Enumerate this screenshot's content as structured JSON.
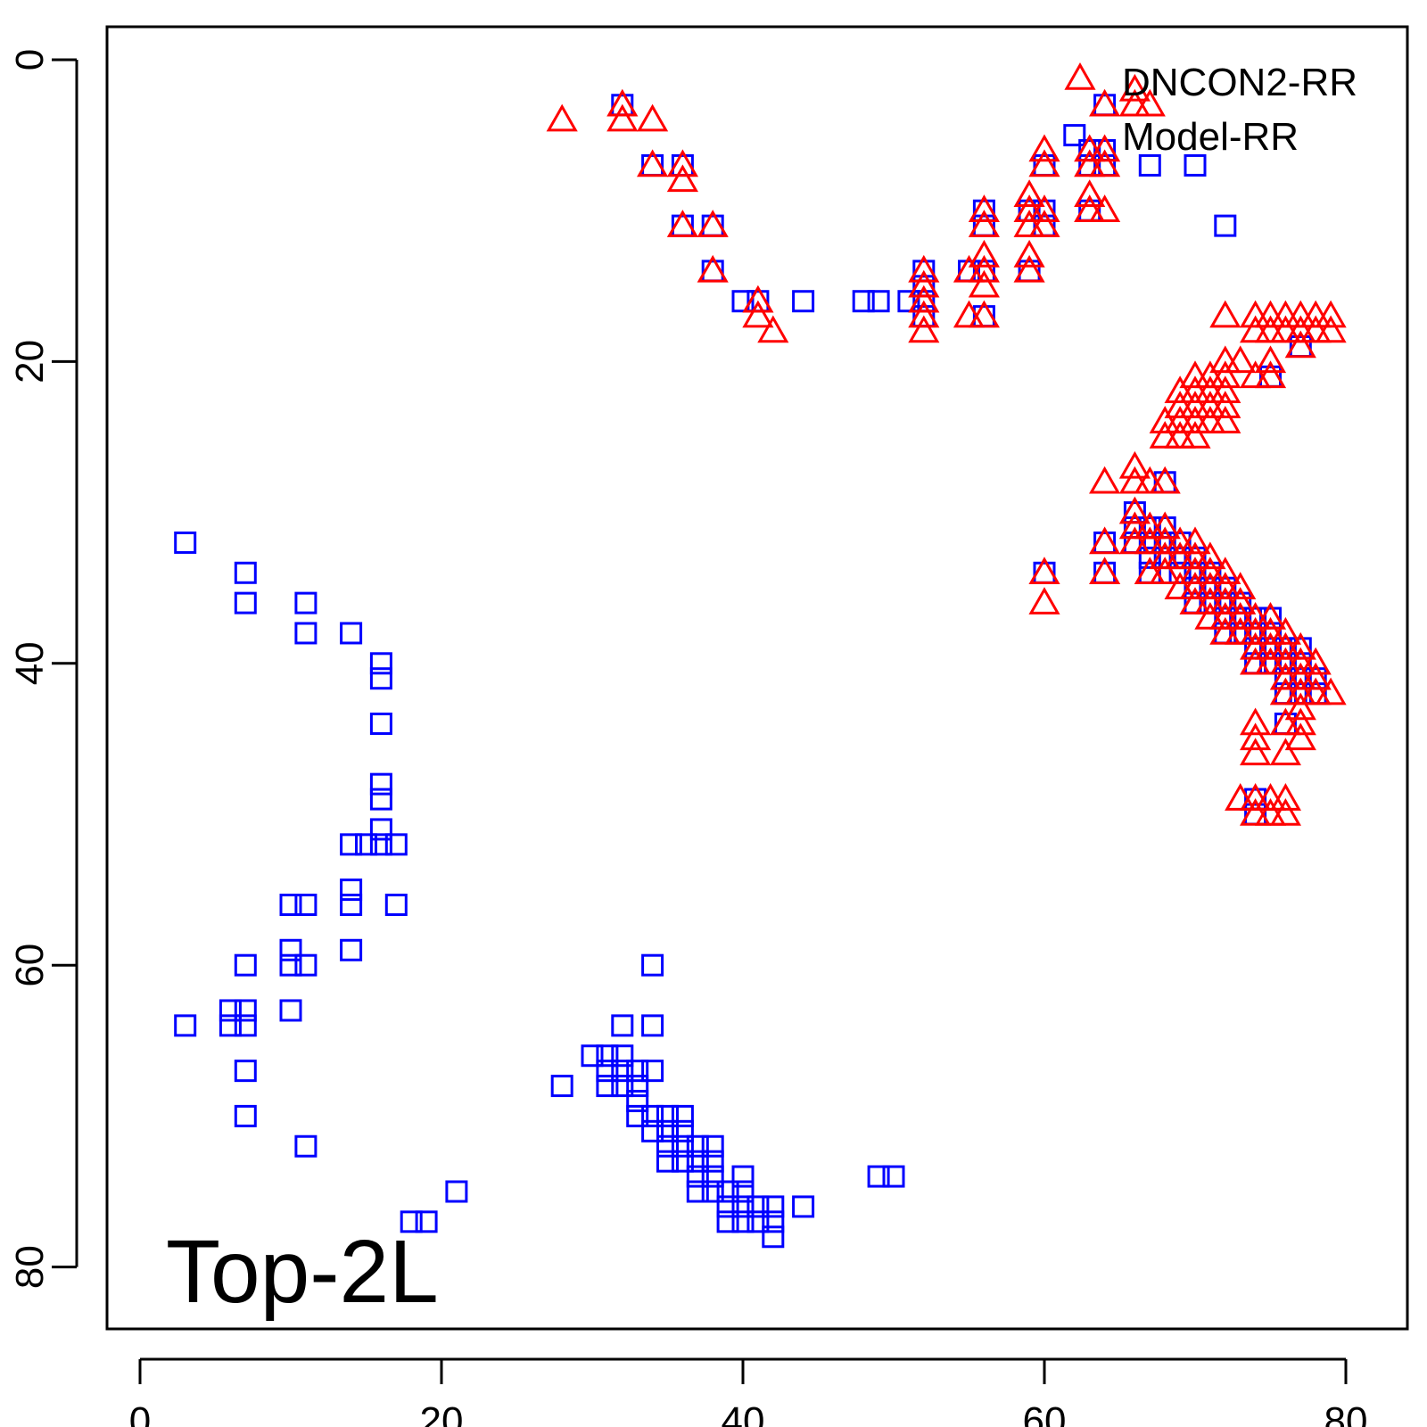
{
  "chart_data": {
    "type": "scatter",
    "xlim": [
      -2,
      84
    ],
    "ylim": [
      84,
      -2
    ],
    "y_reversed": true,
    "x_ticks": [
      0,
      20,
      40,
      60,
      80
    ],
    "y_ticks": [
      0,
      20,
      40,
      60,
      80
    ],
    "grid": false,
    "legend_position": "top-right",
    "annotation": "Top-2L",
    "series": [
      {
        "name": "DNCON2-RR",
        "marker": "triangle",
        "color": "#ff0000",
        "points": [
          [
            28,
            4
          ],
          [
            32,
            3
          ],
          [
            32,
            4
          ],
          [
            34,
            4
          ],
          [
            34,
            7
          ],
          [
            36,
            7
          ],
          [
            36,
            8
          ],
          [
            36,
            11
          ],
          [
            38,
            11
          ],
          [
            38,
            14
          ],
          [
            41,
            16
          ],
          [
            41,
            17
          ],
          [
            42,
            18
          ],
          [
            52,
            14
          ],
          [
            52,
            15
          ],
          [
            52,
            16
          ],
          [
            52,
            17
          ],
          [
            52,
            18
          ],
          [
            55,
            14
          ],
          [
            55,
            17
          ],
          [
            56,
            10
          ],
          [
            56,
            11
          ],
          [
            56,
            13
          ],
          [
            56,
            14
          ],
          [
            56,
            15
          ],
          [
            56,
            17
          ],
          [
            59,
            9
          ],
          [
            59,
            10
          ],
          [
            59,
            11
          ],
          [
            59,
            13
          ],
          [
            59,
            14
          ],
          [
            60,
            6
          ],
          [
            60,
            7
          ],
          [
            60,
            10
          ],
          [
            60,
            11
          ],
          [
            60,
            34
          ],
          [
            60,
            36
          ],
          [
            63,
            6
          ],
          [
            63,
            7
          ],
          [
            63,
            9
          ],
          [
            63,
            10
          ],
          [
            64,
            3
          ],
          [
            64,
            6
          ],
          [
            64,
            7
          ],
          [
            64,
            10
          ],
          [
            64,
            28
          ],
          [
            64,
            32
          ],
          [
            64,
            34
          ],
          [
            66,
            2
          ],
          [
            66,
            3
          ],
          [
            67,
            3
          ],
          [
            66,
            27
          ],
          [
            66,
            28
          ],
          [
            67,
            28
          ],
          [
            66,
            30
          ],
          [
            66,
            31
          ],
          [
            67,
            31
          ],
          [
            66,
            32
          ],
          [
            67,
            32
          ],
          [
            68,
            28
          ],
          [
            68,
            31
          ],
          [
            68,
            32
          ],
          [
            68,
            33
          ],
          [
            68,
            34
          ],
          [
            67,
            34
          ],
          [
            69,
            32
          ],
          [
            69,
            33
          ],
          [
            69,
            35
          ],
          [
            70,
            32
          ],
          [
            70,
            33
          ],
          [
            70,
            34
          ],
          [
            70,
            35
          ],
          [
            70,
            36
          ],
          [
            71,
            33
          ],
          [
            71,
            34
          ],
          [
            71,
            35
          ],
          [
            71,
            36
          ],
          [
            71,
            37
          ],
          [
            72,
            34
          ],
          [
            72,
            35
          ],
          [
            72,
            36
          ],
          [
            72,
            37
          ],
          [
            72,
            38
          ],
          [
            73,
            35
          ],
          [
            73,
            36
          ],
          [
            73,
            37
          ],
          [
            73,
            38
          ],
          [
            74,
            37
          ],
          [
            74,
            38
          ],
          [
            74,
            39
          ],
          [
            74,
            40
          ],
          [
            75,
            37
          ],
          [
            75,
            38
          ],
          [
            75,
            39
          ],
          [
            75,
            40
          ],
          [
            76,
            38
          ],
          [
            76,
            39
          ],
          [
            76,
            40
          ],
          [
            76,
            41
          ],
          [
            76,
            42
          ],
          [
            77,
            39
          ],
          [
            77,
            40
          ],
          [
            77,
            41
          ],
          [
            77,
            42
          ],
          [
            77,
            43
          ],
          [
            78,
            40
          ],
          [
            78,
            41
          ],
          [
            78,
            42
          ],
          [
            79,
            42
          ],
          [
            74,
            44
          ],
          [
            74,
            45
          ],
          [
            74,
            46
          ],
          [
            76,
            44
          ],
          [
            76,
            46
          ],
          [
            77,
            44
          ],
          [
            77,
            45
          ],
          [
            73,
            49
          ],
          [
            74,
            49
          ],
          [
            74,
            50
          ],
          [
            75,
            49
          ],
          [
            76,
            49
          ],
          [
            75,
            50
          ],
          [
            76,
            50
          ],
          [
            68,
            25
          ],
          [
            68,
            24
          ],
          [
            69,
            22
          ],
          [
            69,
            23
          ],
          [
            69,
            24
          ],
          [
            69,
            25
          ],
          [
            70,
            21
          ],
          [
            70,
            22
          ],
          [
            70,
            23
          ],
          [
            70,
            24
          ],
          [
            70,
            25
          ],
          [
            71,
            21
          ],
          [
            71,
            22
          ],
          [
            71,
            23
          ],
          [
            71,
            24
          ],
          [
            72,
            20
          ],
          [
            72,
            21
          ],
          [
            72,
            22
          ],
          [
            72,
            23
          ],
          [
            72,
            24
          ],
          [
            73,
            20
          ],
          [
            72,
            17
          ],
          [
            74,
            17
          ],
          [
            74,
            18
          ],
          [
            74,
            21
          ],
          [
            75,
            17
          ],
          [
            75,
            18
          ],
          [
            75,
            20
          ],
          [
            75,
            21
          ],
          [
            76,
            17
          ],
          [
            76,
            18
          ],
          [
            77,
            17
          ],
          [
            77,
            18
          ],
          [
            77,
            19
          ],
          [
            78,
            17
          ],
          [
            78,
            18
          ],
          [
            79,
            17
          ],
          [
            79,
            18
          ]
        ]
      },
      {
        "name": "Model-RR",
        "marker": "square",
        "color": "#0000ff",
        "points": [
          [
            32,
            3
          ],
          [
            34,
            7
          ],
          [
            36,
            7
          ],
          [
            36,
            11
          ],
          [
            38,
            11
          ],
          [
            38,
            14
          ],
          [
            40,
            16
          ],
          [
            41,
            16
          ],
          [
            44,
            16
          ],
          [
            48,
            16
          ],
          [
            49,
            16
          ],
          [
            51,
            16
          ],
          [
            52,
            14
          ],
          [
            52,
            15
          ],
          [
            52,
            16
          ],
          [
            52,
            17
          ],
          [
            55,
            14
          ],
          [
            56,
            10
          ],
          [
            56,
            11
          ],
          [
            56,
            14
          ],
          [
            56,
            17
          ],
          [
            59,
            10
          ],
          [
            59,
            14
          ],
          [
            60,
            7
          ],
          [
            60,
            10
          ],
          [
            60,
            11
          ],
          [
            62,
            5
          ],
          [
            63,
            6
          ],
          [
            63,
            7
          ],
          [
            63,
            10
          ],
          [
            64,
            3
          ],
          [
            64,
            6
          ],
          [
            64,
            7
          ],
          [
            67,
            7
          ],
          [
            70,
            7
          ],
          [
            72,
            11
          ],
          [
            60,
            34
          ],
          [
            64,
            32
          ],
          [
            64,
            34
          ],
          [
            66,
            30
          ],
          [
            66,
            31
          ],
          [
            66,
            32
          ],
          [
            67,
            31
          ],
          [
            67,
            32
          ],
          [
            67,
            33
          ],
          [
            67,
            34
          ],
          [
            68,
            28
          ],
          [
            68,
            31
          ],
          [
            68,
            32
          ],
          [
            68,
            33
          ],
          [
            69,
            32
          ],
          [
            69,
            33
          ],
          [
            69,
            34
          ],
          [
            70,
            33
          ],
          [
            70,
            34
          ],
          [
            70,
            35
          ],
          [
            70,
            36
          ],
          [
            71,
            34
          ],
          [
            71,
            35
          ],
          [
            71,
            36
          ],
          [
            72,
            35
          ],
          [
            72,
            36
          ],
          [
            72,
            37
          ],
          [
            72,
            38
          ],
          [
            73,
            36
          ],
          [
            73,
            37
          ],
          [
            73,
            38
          ],
          [
            74,
            37
          ],
          [
            74,
            38
          ],
          [
            74,
            39
          ],
          [
            74,
            40
          ],
          [
            75,
            37
          ],
          [
            75,
            38
          ],
          [
            75,
            39
          ],
          [
            75,
            40
          ],
          [
            75,
            21
          ],
          [
            76,
            39
          ],
          [
            76,
            40
          ],
          [
            76,
            41
          ],
          [
            76,
            42
          ],
          [
            76,
            44
          ],
          [
            77,
            39
          ],
          [
            77,
            40
          ],
          [
            77,
            41
          ],
          [
            77,
            42
          ],
          [
            77,
            19
          ],
          [
            78,
            41
          ],
          [
            78,
            42
          ],
          [
            74,
            49
          ],
          [
            74,
            50
          ],
          [
            3,
            32
          ],
          [
            7,
            34
          ],
          [
            7,
            36
          ],
          [
            11,
            36
          ],
          [
            11,
            38
          ],
          [
            14,
            38
          ],
          [
            16,
            40
          ],
          [
            16,
            41
          ],
          [
            16,
            44
          ],
          [
            16,
            48
          ],
          [
            16,
            49
          ],
          [
            16,
            51
          ],
          [
            14,
            52
          ],
          [
            15,
            52
          ],
          [
            16,
            52
          ],
          [
            17,
            52
          ],
          [
            14,
            55
          ],
          [
            10,
            56
          ],
          [
            11,
            56
          ],
          [
            14,
            56
          ],
          [
            17,
            56
          ],
          [
            10,
            59
          ],
          [
            14,
            59
          ],
          [
            7,
            60
          ],
          [
            10,
            60
          ],
          [
            11,
            60
          ],
          [
            3,
            64
          ],
          [
            6,
            63
          ],
          [
            7,
            63
          ],
          [
            10,
            63
          ],
          [
            6,
            64
          ],
          [
            7,
            64
          ],
          [
            7,
            67
          ],
          [
            7,
            70
          ],
          [
            11,
            72
          ],
          [
            28,
            68
          ],
          [
            31,
            66
          ],
          [
            32,
            66
          ],
          [
            30,
            66
          ],
          [
            31,
            67
          ],
          [
            32,
            67
          ],
          [
            31,
            68
          ],
          [
            32,
            68
          ],
          [
            33,
            67
          ],
          [
            33,
            68
          ],
          [
            33,
            69
          ],
          [
            33,
            70
          ],
          [
            32,
            64
          ],
          [
            34,
            60
          ],
          [
            34,
            64
          ],
          [
            34,
            67
          ],
          [
            34,
            70
          ],
          [
            34,
            71
          ],
          [
            35,
            70
          ],
          [
            35,
            71
          ],
          [
            35,
            72
          ],
          [
            35,
            73
          ],
          [
            36,
            70
          ],
          [
            36,
            71
          ],
          [
            36,
            72
          ],
          [
            36,
            73
          ],
          [
            37,
            72
          ],
          [
            37,
            73
          ],
          [
            37,
            74
          ],
          [
            37,
            75
          ],
          [
            38,
            72
          ],
          [
            38,
            73
          ],
          [
            38,
            74
          ],
          [
            38,
            75
          ],
          [
            39,
            75
          ],
          [
            39,
            76
          ],
          [
            39,
            77
          ],
          [
            40,
            74
          ],
          [
            40,
            75
          ],
          [
            40,
            76
          ],
          [
            40,
            77
          ],
          [
            41,
            76
          ],
          [
            41,
            77
          ],
          [
            42,
            76
          ],
          [
            42,
            77
          ],
          [
            42,
            78
          ],
          [
            44,
            76
          ],
          [
            49,
            74
          ],
          [
            50,
            74
          ],
          [
            18,
            77
          ],
          [
            19,
            77
          ],
          [
            21,
            75
          ]
        ]
      }
    ]
  }
}
